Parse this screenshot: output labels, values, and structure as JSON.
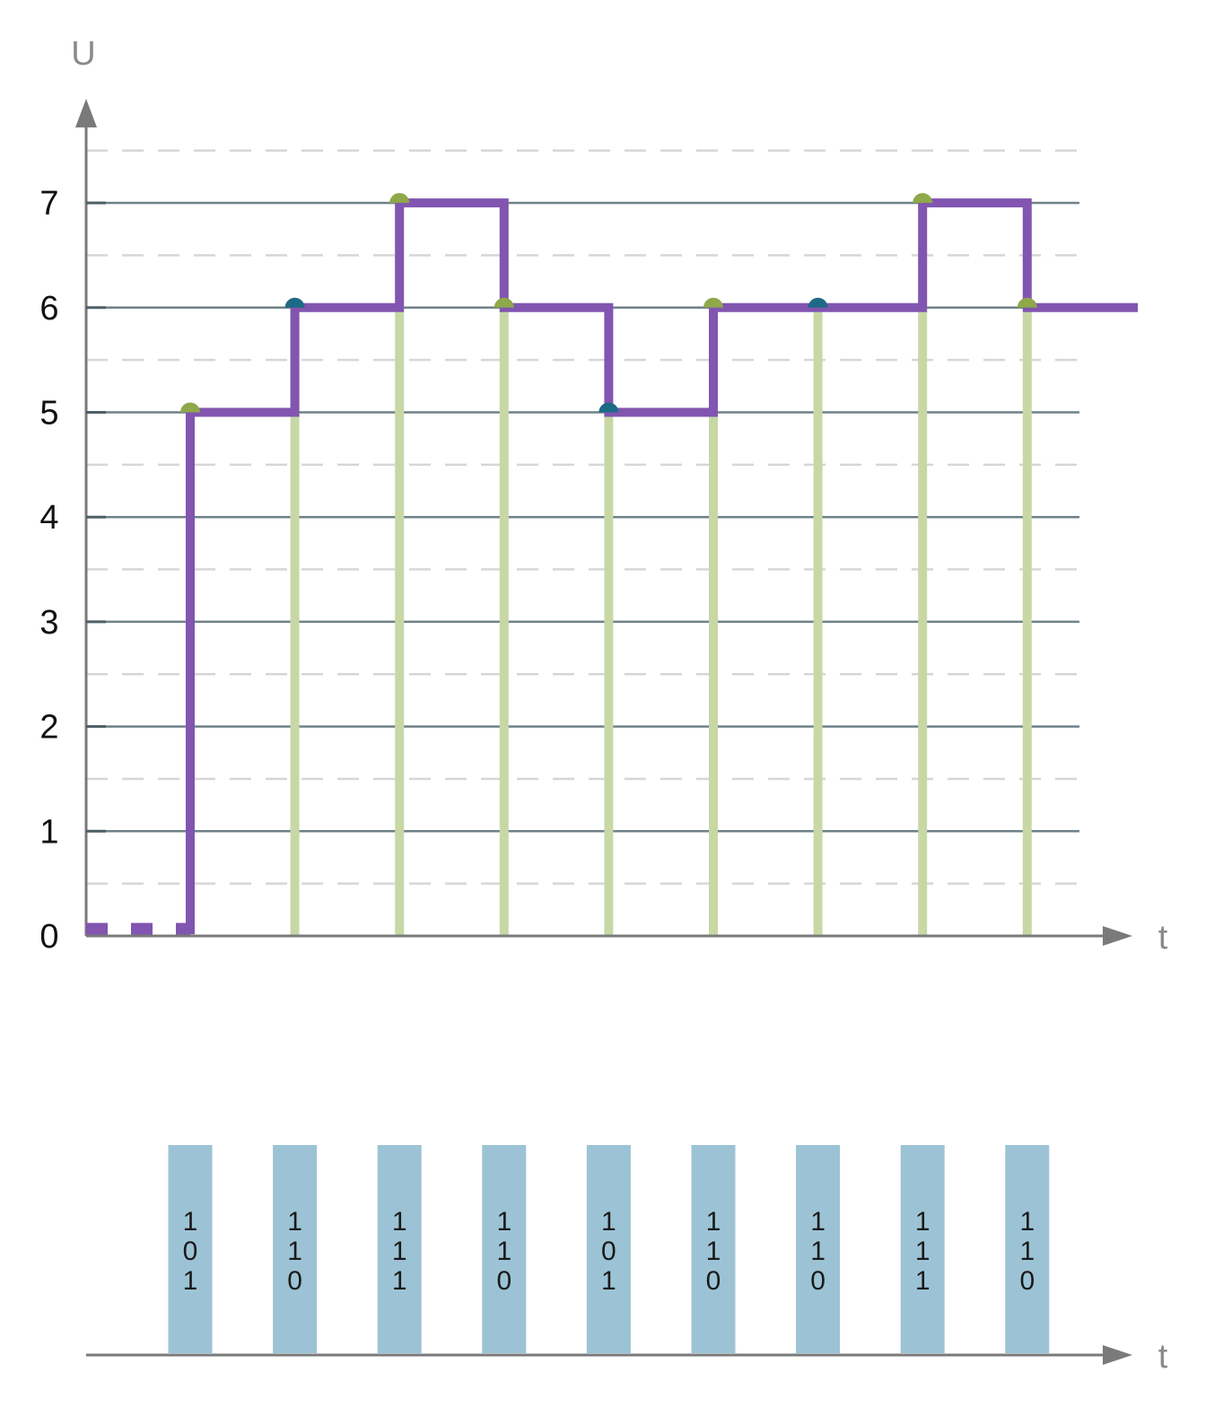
{
  "chart_data": [
    {
      "type": "line",
      "ylabel": "U",
      "xlabel": "t",
      "ylim": [
        0,
        7
      ],
      "yticks": [
        "0",
        "1",
        "2",
        "3",
        "4",
        "5",
        "6",
        "7"
      ],
      "minor_gridlines": "dashed, every 0.5",
      "grid": true,
      "x_samples": [
        1,
        2,
        3,
        4,
        5,
        6,
        7,
        8,
        9
      ],
      "sample_values": [
        5,
        6,
        7,
        6,
        5,
        6,
        6,
        7,
        6
      ],
      "sample_marker_colors": [
        "#8ea84a",
        "#1d6a86",
        "#8ea84a",
        "#8ea84a",
        "#1d6a86",
        "#8ea84a",
        "#1d6a86",
        "#8ea84a",
        "#8ea84a"
      ],
      "initial_level": 0,
      "initial_level_style": "dashed",
      "series": [
        {
          "type": "step",
          "color": "#8155b0",
          "values": [
            5,
            6,
            7,
            6,
            5,
            6,
            6,
            7,
            6
          ]
        },
        {
          "type": "stem",
          "color": "#c7d8a5"
        }
      ]
    },
    {
      "type": "bar",
      "xlabel": "t",
      "codes": [
        [
          "1",
          "0",
          "1"
        ],
        [
          "1",
          "1",
          "0"
        ],
        [
          "1",
          "1",
          "1"
        ],
        [
          "1",
          "1",
          "0"
        ],
        [
          "1",
          "0",
          "1"
        ],
        [
          "1",
          "1",
          "0"
        ],
        [
          "1",
          "1",
          "0"
        ],
        [
          "1",
          "1",
          "1"
        ],
        [
          "1",
          "1",
          "0"
        ]
      ],
      "bar_color": "#9cc3d5"
    }
  ],
  "colors": {
    "axis": "#7a7a7a",
    "major_grid": "#6f8189",
    "minor_grid": "#d6d6d6"
  }
}
